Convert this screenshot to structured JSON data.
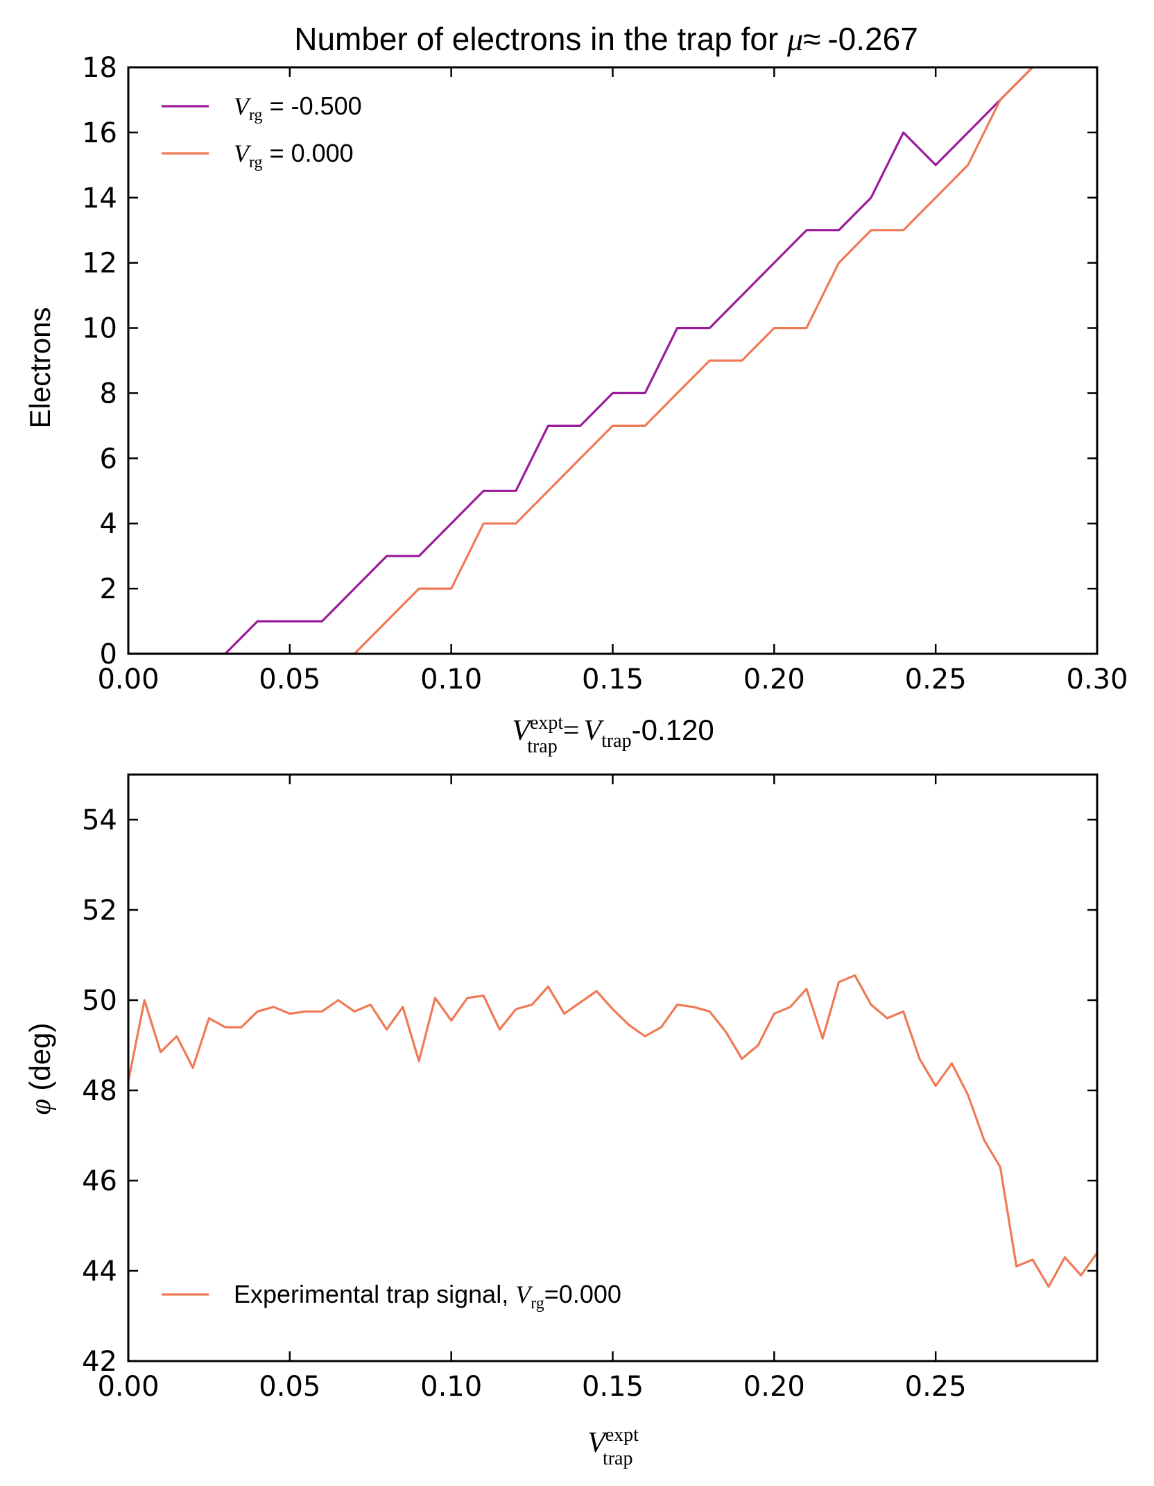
{
  "chart_data": [
    {
      "type": "line",
      "title": {
        "prefix": "Number of electrons in the trap for ",
        "symbol": "μ",
        "approx": "≈",
        "value": "-0.267"
      },
      "xlabel": {
        "V": "V",
        "sup": "expt",
        "sub": "trap",
        "eq": "=",
        "V2": "V",
        "sub2": "trap",
        "suffix": "-0.120"
      },
      "ylabel": "Electrons",
      "xlim": [
        0,
        0.3
      ],
      "ylim": [
        0,
        18
      ],
      "xticks": [
        0.0,
        0.05,
        0.1,
        0.15,
        0.2,
        0.25,
        0.3
      ],
      "xtick_labels": [
        "0.00",
        "0.05",
        "0.10",
        "0.15",
        "0.20",
        "0.25",
        "0.30"
      ],
      "yticks": [
        0,
        2,
        4,
        6,
        8,
        10,
        12,
        14,
        16,
        18
      ],
      "ytick_labels": [
        "0",
        "2",
        "4",
        "6",
        "8",
        "10",
        "12",
        "14",
        "16",
        "18"
      ],
      "legend_position": "top-left",
      "series": [
        {
          "legend": {
            "V": "V",
            "sub": "rg",
            "text": " = -0.500"
          },
          "color": "#9b1a9b",
          "x": [
            0.0,
            0.01,
            0.02,
            0.03,
            0.04,
            0.05,
            0.06,
            0.07,
            0.08,
            0.09,
            0.1,
            0.11,
            0.12,
            0.13,
            0.14,
            0.15,
            0.16,
            0.17,
            0.18,
            0.19,
            0.2,
            0.21,
            0.22,
            0.23,
            0.24,
            0.25,
            0.26,
            0.27,
            0.28
          ],
          "y": [
            0,
            0,
            0,
            0,
            1,
            1,
            1,
            2,
            3,
            3,
            4,
            5,
            5,
            7,
            7,
            8,
            8,
            10,
            10,
            11,
            12,
            13,
            13,
            14,
            16,
            15,
            16,
            17,
            18
          ]
        },
        {
          "legend": {
            "V": "V",
            "sub": "rg",
            "text": " = 0.000"
          },
          "color": "#ef7a55",
          "x": [
            0.0,
            0.01,
            0.02,
            0.03,
            0.04,
            0.05,
            0.06,
            0.07,
            0.08,
            0.09,
            0.1,
            0.11,
            0.12,
            0.13,
            0.14,
            0.15,
            0.16,
            0.17,
            0.18,
            0.19,
            0.2,
            0.21,
            0.22,
            0.23,
            0.24,
            0.25,
            0.26,
            0.27,
            0.28
          ],
          "y": [
            0,
            0,
            0,
            0,
            0,
            0,
            0,
            0,
            1,
            2,
            2,
            4,
            4,
            5,
            6,
            7,
            7,
            8,
            9,
            9,
            10,
            10,
            12,
            13,
            13,
            14,
            15,
            17,
            18
          ]
        }
      ]
    },
    {
      "type": "line",
      "xlabel": {
        "V": "V",
        "sup": "expt",
        "sub": "trap"
      },
      "ylabel": {
        "symbol": "φ",
        "text": " (deg)"
      },
      "xlim": [
        0,
        0.3
      ],
      "ylim": [
        42,
        55
      ],
      "xticks": [
        0.0,
        0.05,
        0.1,
        0.15,
        0.2,
        0.25
      ],
      "xtick_labels": [
        "0.00",
        "0.05",
        "0.10",
        "0.15",
        "0.20",
        "0.25"
      ],
      "yticks": [
        42,
        44,
        46,
        48,
        50,
        52,
        54
      ],
      "ytick_labels": [
        "42",
        "44",
        "46",
        "48",
        "50",
        "52",
        "54"
      ],
      "legend_position": "bottom-left",
      "series": [
        {
          "legend": {
            "prefix": "Experimental trap signal, ",
            "V": "V",
            "sub": "rg",
            "suffix": "=0.000"
          },
          "color": "#ef7a55",
          "x": [
            0.0,
            0.005,
            0.01,
            0.015,
            0.02,
            0.025,
            0.03,
            0.035,
            0.04,
            0.045,
            0.05,
            0.055,
            0.06,
            0.065,
            0.07,
            0.075,
            0.08,
            0.085,
            0.09,
            0.095,
            0.1,
            0.105,
            0.11,
            0.115,
            0.12,
            0.125,
            0.13,
            0.135,
            0.14,
            0.145,
            0.15,
            0.155,
            0.16,
            0.165,
            0.17,
            0.175,
            0.18,
            0.185,
            0.19,
            0.195,
            0.2,
            0.205,
            0.21,
            0.215,
            0.22,
            0.225,
            0.23,
            0.235,
            0.24,
            0.245,
            0.25,
            0.255,
            0.26,
            0.265,
            0.27,
            0.275,
            0.28,
            0.285,
            0.29,
            0.295,
            0.3
          ],
          "y": [
            48.2,
            50.0,
            48.85,
            49.2,
            48.5,
            49.6,
            49.4,
            49.4,
            49.75,
            49.85,
            49.7,
            49.75,
            49.75,
            50.0,
            49.75,
            49.9,
            49.35,
            49.85,
            48.65,
            50.05,
            49.55,
            50.05,
            50.1,
            49.35,
            49.8,
            49.9,
            50.3,
            49.7,
            49.95,
            50.2,
            49.8,
            49.45,
            49.2,
            49.4,
            49.9,
            49.85,
            49.75,
            49.3,
            48.7,
            49.0,
            49.7,
            49.85,
            50.25,
            49.15,
            50.4,
            50.55,
            49.9,
            49.6,
            49.75,
            48.7,
            48.1,
            48.6,
            47.9,
            46.9,
            46.3,
            44.1,
            44.25,
            43.65,
            44.3,
            43.9,
            44.4
          ]
        }
      ]
    }
  ]
}
